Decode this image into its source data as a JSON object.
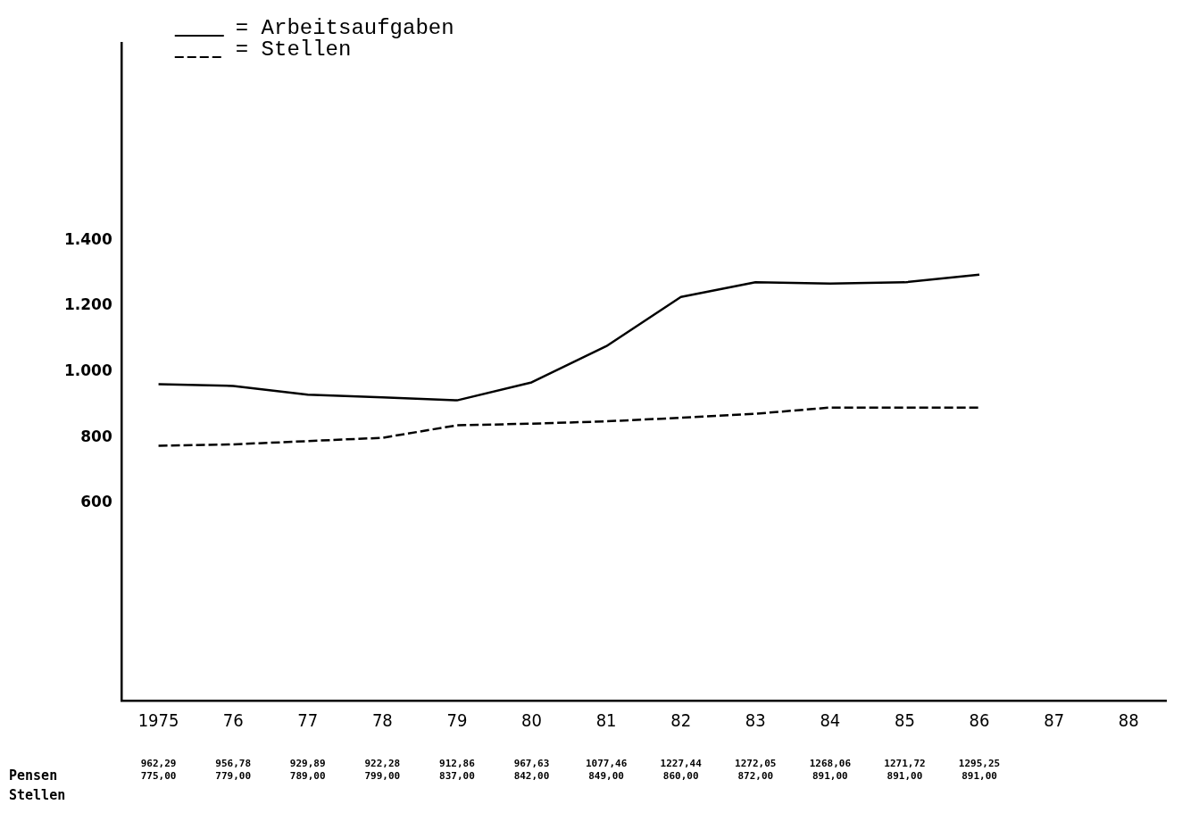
{
  "chart_data": {
    "type": "line",
    "categories": [
      "1975",
      "76",
      "77",
      "78",
      "79",
      "80",
      "81",
      "82",
      "83",
      "84",
      "85",
      "86",
      "87",
      "88"
    ],
    "series": [
      {
        "name": "= Arbeitsaufgaben",
        "color": "#000000",
        "line_style": "solid",
        "values": [
          962.29,
          956.78,
          929.89,
          922.28,
          912.86,
          967.63,
          1077.46,
          1227.44,
          1272.05,
          1268.06,
          1271.72,
          1295.25,
          null,
          null
        ],
        "value_labels": [
          "962,29",
          "956,78",
          "929,89",
          "922,28",
          "912,86",
          "967,63",
          "1077,46",
          "1227,44",
          "1272,05",
          "1268,06",
          "1271,72",
          "1295,25",
          null,
          null
        ]
      },
      {
        "name": "= Stellen",
        "color": "#000000",
        "line_style": "dashed",
        "values": [
          775,
          779,
          789,
          799,
          837,
          842,
          849,
          860,
          872,
          891,
          891,
          891,
          null,
          null
        ],
        "value_labels": [
          "775,00",
          "779,00",
          "789,00",
          "799,00",
          "837,00",
          "842,00",
          "849,00",
          "860,00",
          "872,00",
          "891,00",
          "891,00",
          "891,00",
          null,
          null
        ]
      }
    ],
    "ylim": [
      0,
      2000
    ],
    "yticks": [
      {
        "value": 600,
        "label": "600"
      },
      {
        "value": 800,
        "label": "800"
      },
      {
        "value": 1000,
        "label": "1.000"
      },
      {
        "value": 1200,
        "label": "1.200"
      },
      {
        "value": 1400,
        "label": "1.400"
      }
    ],
    "grid": false,
    "legend": "top left",
    "marker": "none",
    "annotations": [
      "Pensen",
      "Stellen"
    ]
  }
}
